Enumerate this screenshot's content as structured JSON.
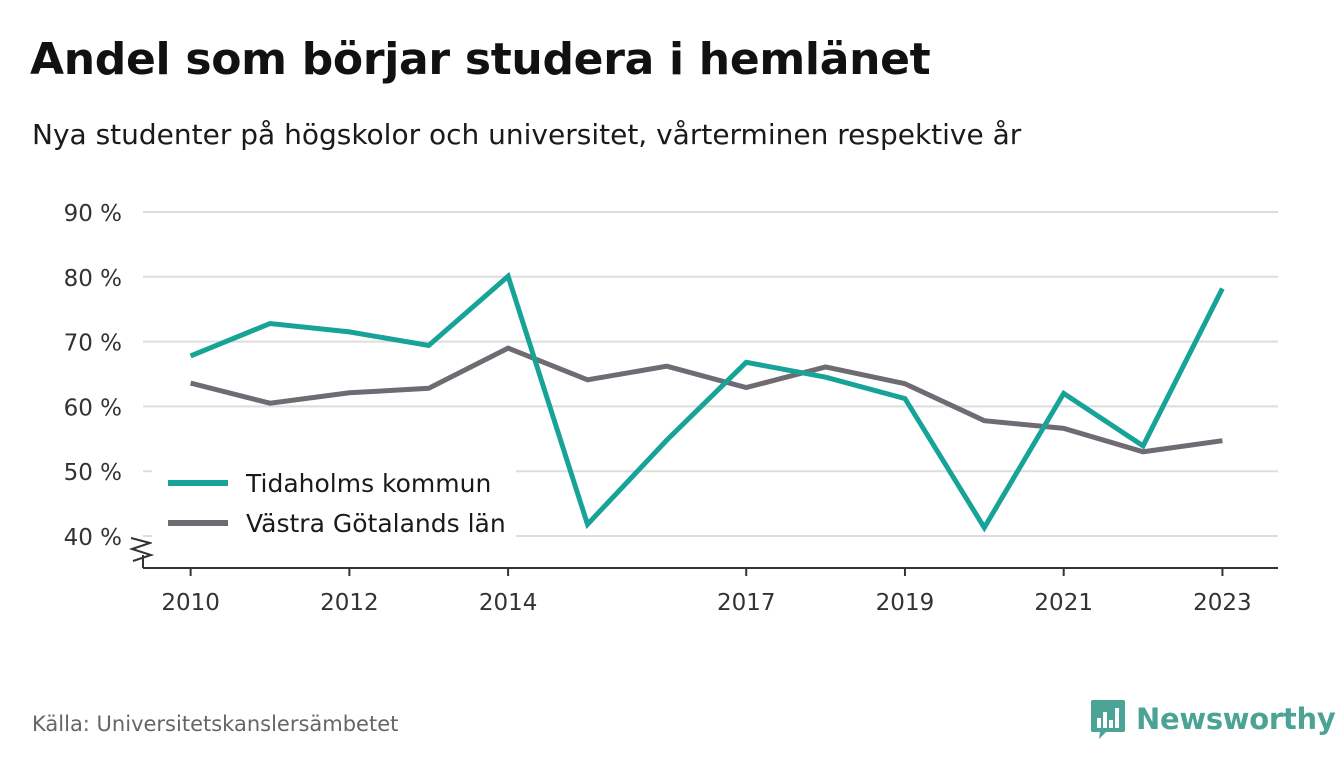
{
  "title": "Andel som börjar studera i hemlänet",
  "subtitle": "Nya studenter på högskolor och universitet, vårterminen respektive år",
  "source": "Källa: Universitetskanslersämbetet",
  "brand": {
    "name": "Newsworthy",
    "icon": "bar-chart-icon",
    "color": "#4aa394"
  },
  "chart_data": {
    "type": "line",
    "x": [
      2010,
      2011,
      2012,
      2013,
      2014,
      2015,
      2016,
      2017,
      2018,
      2019,
      2020,
      2021,
      2022,
      2023
    ],
    "x_tick_labels": [
      "2010",
      "2012",
      "2014",
      "2017",
      "2019",
      "2021",
      "2023"
    ],
    "y_tick_values": [
      40,
      50,
      60,
      70,
      80,
      90
    ],
    "y_tick_labels": [
      "40 %",
      "50 %",
      "60 %",
      "70 %",
      "80 %",
      "90 %"
    ],
    "ylim": [
      35,
      90
    ],
    "xlim": [
      2009.4,
      2023.7
    ],
    "grid": true,
    "axis_break": true,
    "legend_position": "bottom-left",
    "series": [
      {
        "name": "Tidaholms kommun",
        "color": "#17a398",
        "values": [
          67.8,
          72.8,
          71.5,
          69.4,
          80.1,
          41.8,
          54.8,
          66.8,
          64.5,
          61.2,
          41.3,
          62.0,
          53.9,
          78.2
        ]
      },
      {
        "name": "Västra Götalands län",
        "color": "#6e6b73",
        "values": [
          63.6,
          60.5,
          62.1,
          62.8,
          69.0,
          64.1,
          66.2,
          62.9,
          66.1,
          63.5,
          57.8,
          56.6,
          53.0,
          54.7
        ]
      }
    ]
  }
}
